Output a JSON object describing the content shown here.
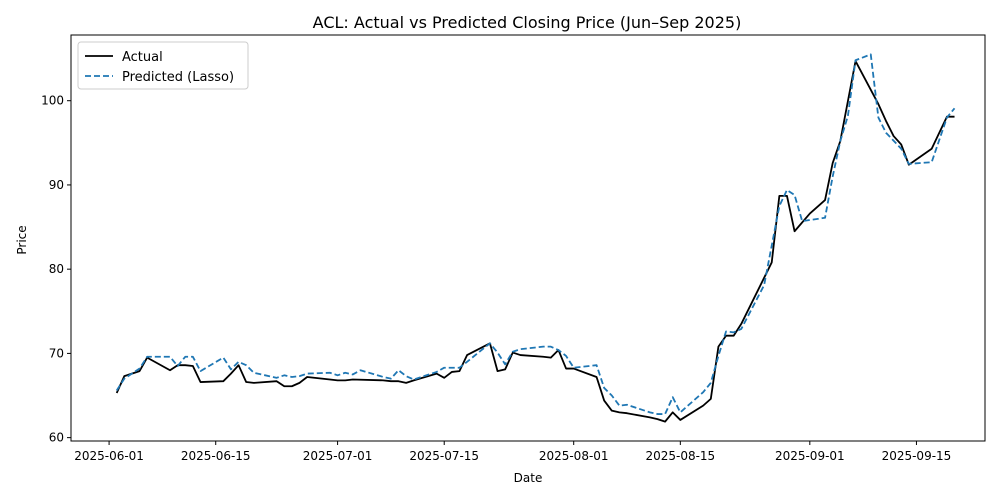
{
  "chart_data": {
    "type": "line",
    "title": "ACL: Actual vs Predicted Closing Price (Jun–Sep 2025)",
    "xlabel": "Date",
    "ylabel": "Price",
    "xlim": [
      "2025-05-27",
      "2025-09-24"
    ],
    "ylim": [
      59.6,
      107.8
    ],
    "x_ticks": [
      "2025-06-01",
      "2025-06-15",
      "2025-07-01",
      "2025-07-15",
      "2025-08-01",
      "2025-08-15",
      "2025-09-01",
      "2025-09-15"
    ],
    "y_ticks": [
      60,
      70,
      80,
      90,
      100
    ],
    "grid": false,
    "legend_position": "upper-left",
    "series": [
      {
        "name": "Actual",
        "color": "#000000",
        "style": "solid",
        "points": [
          [
            "2025-06-02",
            65.3
          ],
          [
            "2025-06-03",
            67.3
          ],
          [
            "2025-06-05",
            67.9
          ],
          [
            "2025-06-06",
            69.5
          ],
          [
            "2025-06-09",
            68.0
          ],
          [
            "2025-06-10",
            68.6
          ],
          [
            "2025-06-11",
            68.6
          ],
          [
            "2025-06-12",
            68.5
          ],
          [
            "2025-06-13",
            66.6
          ],
          [
            "2025-06-16",
            66.7
          ],
          [
            "2025-06-17",
            67.6
          ],
          [
            "2025-06-18",
            68.6
          ],
          [
            "2025-06-19",
            66.6
          ],
          [
            "2025-06-20",
            66.5
          ],
          [
            "2025-06-23",
            66.7
          ],
          [
            "2025-06-24",
            66.1
          ],
          [
            "2025-06-25",
            66.1
          ],
          [
            "2025-06-26",
            66.5
          ],
          [
            "2025-06-27",
            67.2
          ],
          [
            "2025-06-30",
            66.9
          ],
          [
            "2025-07-01",
            66.8
          ],
          [
            "2025-07-02",
            66.8
          ],
          [
            "2025-07-03",
            66.9
          ],
          [
            "2025-07-07",
            66.8
          ],
          [
            "2025-07-08",
            66.7
          ],
          [
            "2025-07-09",
            66.7
          ],
          [
            "2025-07-10",
            66.5
          ],
          [
            "2025-07-11",
            66.8
          ],
          [
            "2025-07-14",
            67.6
          ],
          [
            "2025-07-15",
            67.1
          ],
          [
            "2025-07-16",
            67.8
          ],
          [
            "2025-07-17",
            67.9
          ],
          [
            "2025-07-18",
            69.8
          ],
          [
            "2025-07-21",
            71.2
          ],
          [
            "2025-07-22",
            67.9
          ],
          [
            "2025-07-23",
            68.1
          ],
          [
            "2025-07-24",
            70.1
          ],
          [
            "2025-07-25",
            69.8
          ],
          [
            "2025-07-28",
            69.6
          ],
          [
            "2025-07-29",
            69.5
          ],
          [
            "2025-07-30",
            70.4
          ],
          [
            "2025-07-31",
            68.2
          ],
          [
            "2025-08-01",
            68.2
          ],
          [
            "2025-08-04",
            67.2
          ],
          [
            "2025-08-05",
            64.4
          ],
          [
            "2025-08-06",
            63.2
          ],
          [
            "2025-08-07",
            63.0
          ],
          [
            "2025-08-08",
            62.9
          ],
          [
            "2025-08-11",
            62.4
          ],
          [
            "2025-08-12",
            62.2
          ],
          [
            "2025-08-13",
            61.9
          ],
          [
            "2025-08-14",
            63.0
          ],
          [
            "2025-08-15",
            62.1
          ],
          [
            "2025-08-18",
            63.8
          ],
          [
            "2025-08-19",
            64.6
          ],
          [
            "2025-08-20",
            70.8
          ],
          [
            "2025-08-21",
            72.1
          ],
          [
            "2025-08-22",
            72.1
          ],
          [
            "2025-08-23",
            73.5
          ],
          [
            "2025-08-27",
            80.8
          ],
          [
            "2025-08-28",
            88.7
          ],
          [
            "2025-08-29",
            88.7
          ],
          [
            "2025-08-30",
            84.5
          ],
          [
            "2025-09-01",
            86.6
          ],
          [
            "2025-09-03",
            88.2
          ],
          [
            "2025-09-04",
            92.6
          ],
          [
            "2025-09-05",
            95.2
          ],
          [
            "2025-09-07",
            104.7
          ],
          [
            "2025-09-10",
            99.6
          ],
          [
            "2025-09-11",
            97.6
          ],
          [
            "2025-09-12",
            95.8
          ],
          [
            "2025-09-13",
            94.8
          ],
          [
            "2025-09-14",
            92.4
          ],
          [
            "2025-09-17",
            94.3
          ],
          [
            "2025-09-19",
            98.1
          ],
          [
            "2025-09-20",
            98.1
          ]
        ]
      },
      {
        "name": "Predicted (Lasso)",
        "color": "#1f77b4",
        "style": "dashed",
        "points": [
          [
            "2025-06-02",
            65.6
          ],
          [
            "2025-06-03",
            67.0
          ],
          [
            "2025-06-05",
            68.2
          ],
          [
            "2025-06-06",
            69.6
          ],
          [
            "2025-06-09",
            69.6
          ],
          [
            "2025-06-10",
            68.5
          ],
          [
            "2025-06-11",
            69.6
          ],
          [
            "2025-06-12",
            69.6
          ],
          [
            "2025-06-13",
            67.9
          ],
          [
            "2025-06-16",
            69.5
          ],
          [
            "2025-06-17",
            68.1
          ],
          [
            "2025-06-18",
            69.0
          ],
          [
            "2025-06-19",
            68.6
          ],
          [
            "2025-06-20",
            67.7
          ],
          [
            "2025-06-23",
            67.1
          ],
          [
            "2025-06-24",
            67.4
          ],
          [
            "2025-06-25",
            67.2
          ],
          [
            "2025-06-26",
            67.3
          ],
          [
            "2025-06-27",
            67.6
          ],
          [
            "2025-06-30",
            67.7
          ],
          [
            "2025-07-01",
            67.4
          ],
          [
            "2025-07-02",
            67.7
          ],
          [
            "2025-07-03",
            67.5
          ],
          [
            "2025-07-04",
            68.0
          ],
          [
            "2025-07-07",
            67.2
          ],
          [
            "2025-07-08",
            67.0
          ],
          [
            "2025-07-09",
            68.0
          ],
          [
            "2025-07-10",
            67.3
          ],
          [
            "2025-07-11",
            66.9
          ],
          [
            "2025-07-14",
            67.8
          ],
          [
            "2025-07-15",
            68.3
          ],
          [
            "2025-07-17",
            68.3
          ],
          [
            "2025-07-18",
            69.0
          ],
          [
            "2025-07-21",
            71.2
          ],
          [
            "2025-07-22",
            70.1
          ],
          [
            "2025-07-23",
            68.7
          ],
          [
            "2025-07-24",
            70.2
          ],
          [
            "2025-07-25",
            70.5
          ],
          [
            "2025-07-28",
            70.8
          ],
          [
            "2025-07-29",
            70.8
          ],
          [
            "2025-07-30",
            70.4
          ],
          [
            "2025-07-31",
            69.7
          ],
          [
            "2025-08-01",
            68.3
          ],
          [
            "2025-08-04",
            68.6
          ],
          [
            "2025-08-05",
            65.9
          ],
          [
            "2025-08-06",
            65.0
          ],
          [
            "2025-08-07",
            63.8
          ],
          [
            "2025-08-08",
            63.9
          ],
          [
            "2025-08-11",
            63.0
          ],
          [
            "2025-08-12",
            62.8
          ],
          [
            "2025-08-13",
            62.8
          ],
          [
            "2025-08-14",
            64.8
          ],
          [
            "2025-08-15",
            63.0
          ],
          [
            "2025-08-18",
            65.4
          ],
          [
            "2025-08-19",
            66.5
          ],
          [
            "2025-08-20",
            69.7
          ],
          [
            "2025-08-21",
            72.6
          ],
          [
            "2025-08-22",
            72.5
          ],
          [
            "2025-08-23",
            72.9
          ],
          [
            "2025-08-26",
            78.1
          ],
          [
            "2025-08-28",
            87.5
          ],
          [
            "2025-08-29",
            89.4
          ],
          [
            "2025-08-30",
            88.8
          ],
          [
            "2025-08-31",
            85.7
          ],
          [
            "2025-09-03",
            86.1
          ],
          [
            "2025-09-04",
            91.0
          ],
          [
            "2025-09-05",
            95.2
          ],
          [
            "2025-09-06",
            98.2
          ],
          [
            "2025-09-07",
            104.8
          ],
          [
            "2025-09-09",
            105.5
          ],
          [
            "2025-09-10",
            98.0
          ],
          [
            "2025-09-11",
            96.2
          ],
          [
            "2025-09-13",
            94.3
          ],
          [
            "2025-09-14",
            92.5
          ],
          [
            "2025-09-17",
            92.7
          ],
          [
            "2025-09-19",
            98.0
          ],
          [
            "2025-09-20",
            99.1
          ]
        ]
      }
    ]
  }
}
